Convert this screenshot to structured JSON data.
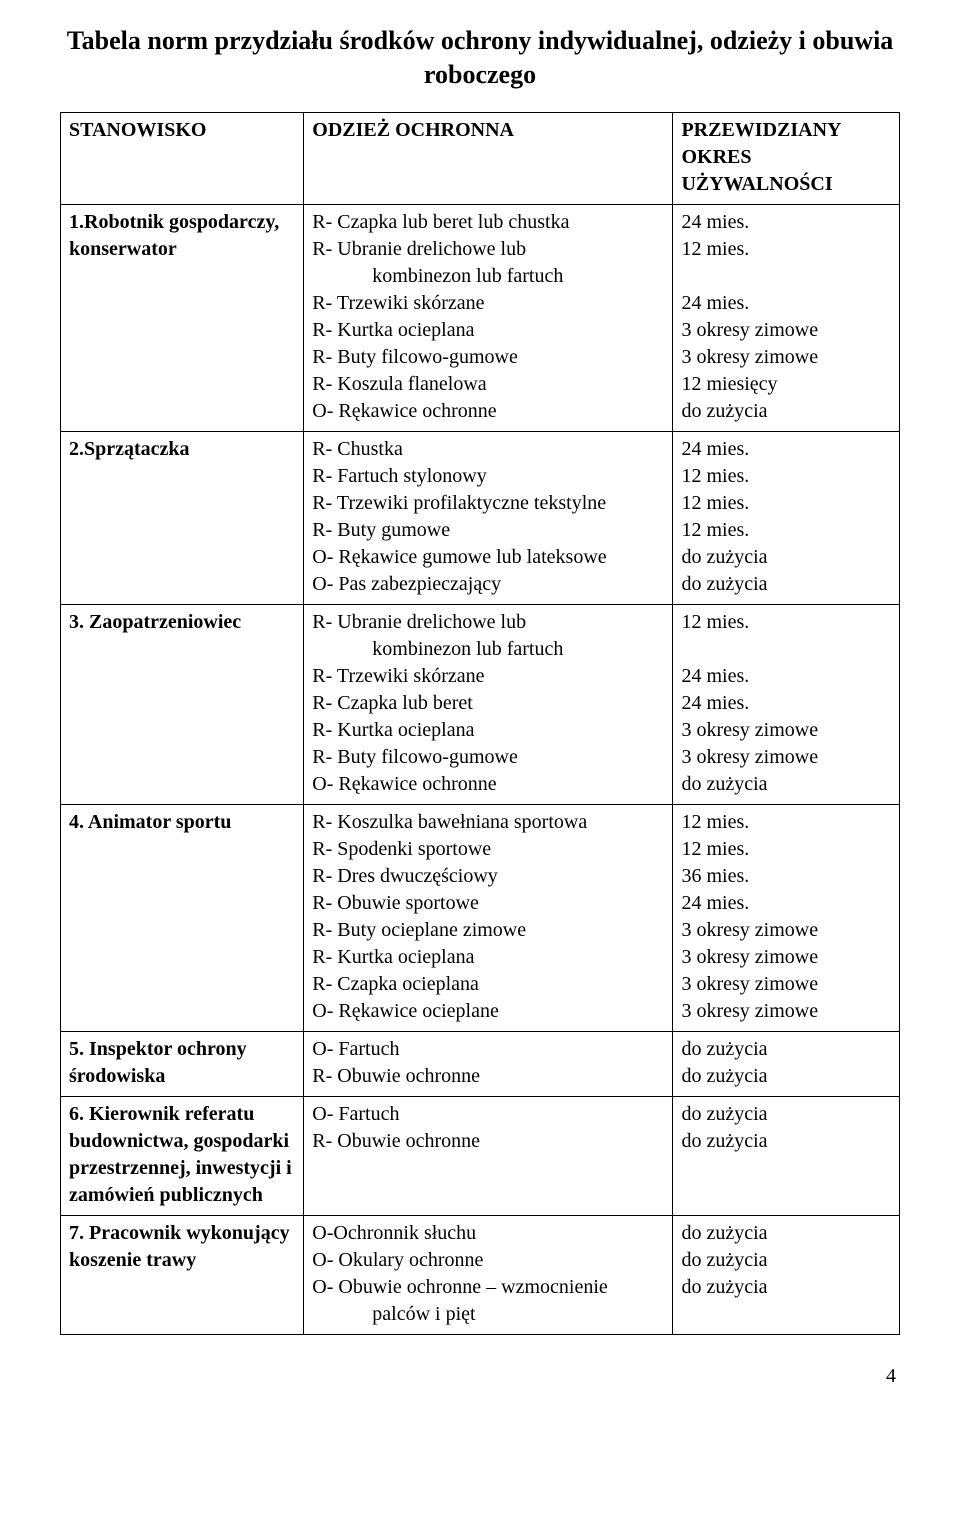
{
  "document": {
    "title": "Tabela norm przydziału środków ochrony indywidualnej, odzieży i obuwia roboczego",
    "page_number": "4"
  },
  "table": {
    "header": {
      "col1": "STANOWISKO",
      "col2": "ODZIEŻ OCHRONNA",
      "col3": "PRZEWIDZIANY OKRES UŻYWALNOŚCI"
    },
    "rows": [
      {
        "position": "1.Robotnik gospodarczy, konserwator",
        "items_lines": [
          "R- Czapka lub beret lub chustka",
          "R- Ubranie drelichowe lub",
          "      kombinezon lub fartuch",
          "R- Trzewiki skórzane",
          "R- Kurtka ocieplana",
          "R- Buty filcowo-gumowe",
          "R- Koszula flanelowa",
          "O- Rękawice ochronne"
        ],
        "durations": [
          "24 mies.",
          "12 mies.",
          "",
          "24 mies.",
          "3 okresy zimowe",
          "3 okresy zimowe",
          "12 miesięcy",
          "do zużycia"
        ]
      },
      {
        "position": "2.Sprzątaczka",
        "items_lines": [
          "R- Chustka",
          "R- Fartuch stylonowy",
          "R- Trzewiki profilaktyczne tekstylne",
          "R- Buty gumowe",
          "O- Rękawice gumowe lub lateksowe",
          "O- Pas zabezpieczający"
        ],
        "durations": [
          "24 mies.",
          "12 mies.",
          "12 mies.",
          "12 mies.",
          "do zużycia",
          "do zużycia"
        ]
      },
      {
        "position": "3. Zaopatrzeniowiec",
        "items_lines": [
          "R- Ubranie drelichowe lub",
          "      kombinezon lub fartuch",
          "R- Trzewiki skórzane",
          "R- Czapka lub beret",
          "R- Kurtka ocieplana",
          "R- Buty filcowo-gumowe",
          "O- Rękawice ochronne"
        ],
        "durations": [
          "12 mies.",
          "",
          "24 mies.",
          "24 mies.",
          "3 okresy zimowe",
          "3 okresy zimowe",
          "do zużycia"
        ]
      },
      {
        "position": "4. Animator sportu",
        "items_lines": [
          "R- Koszulka bawełniana sportowa",
          "R- Spodenki sportowe",
          "R- Dres dwuczęściowy",
          "R- Obuwie sportowe",
          "R- Buty ocieplane zimowe",
          "R- Kurtka ocieplana",
          "R- Czapka ocieplana",
          "O- Rękawice ocieplane"
        ],
        "durations": [
          "12 mies.",
          "12 mies.",
          "36 mies.",
          "24 mies.",
          "3 okresy zimowe",
          "3 okresy zimowe",
          "3 okresy zimowe",
          "3 okresy zimowe"
        ]
      },
      {
        "position": "5. Inspektor ochrony środowiska",
        "items_lines": [
          "O-  Fartuch",
          "R-  Obuwie ochronne"
        ],
        "durations": [
          "do zużycia",
          "do zużycia"
        ]
      },
      {
        "position": "6. Kierownik referatu budownictwa, gospodarki przestrzennej, inwestycji\ni zamówień publicznych",
        "items_lines": [
          "O- Fartuch",
          "R- Obuwie ochronne"
        ],
        "durations": [
          "do zużycia",
          "do zużycia"
        ]
      },
      {
        "position": "7. Pracownik wykonujący koszenie trawy",
        "items_lines": [
          "O-Ochronnik słuchu",
          "O- Okulary ochronne",
          "O- Obuwie ochronne – wzmocnienie",
          "      palców i pięt"
        ],
        "durations": [
          "do zużycia",
          "do zużycia",
          "do zużycia",
          ""
        ]
      }
    ]
  }
}
